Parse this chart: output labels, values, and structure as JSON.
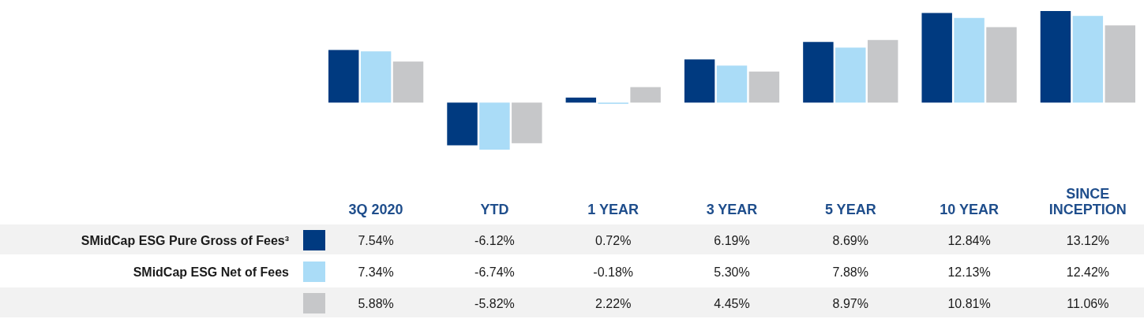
{
  "chart_data": {
    "type": "bar",
    "categories": [
      "3Q 2020",
      "YTD",
      "1 YEAR",
      "3 YEAR",
      "5 YEAR",
      "10 YEAR",
      "SINCE INCEPTION"
    ],
    "legend": "bottom",
    "series": [
      {
        "name": "SMidCap ESG Pure Gross of Fees³",
        "color": "#003a80",
        "values": [
          7.54,
          -6.12,
          0.72,
          6.19,
          8.69,
          12.84,
          13.12
        ],
        "value_labels": [
          "7.54%",
          "-6.12%",
          "0.72%",
          "6.19%",
          "8.69%",
          "12.84%",
          "13.12%"
        ]
      },
      {
        "name": "SMidCap ESG Net of Fees",
        "color": "#aadcf7",
        "values": [
          7.34,
          -6.74,
          -0.18,
          5.3,
          7.88,
          12.13,
          12.42
        ],
        "value_labels": [
          "7.34%",
          "-6.74%",
          "-0.18%",
          "5.30%",
          "7.88%",
          "12.13%",
          "12.42%"
        ]
      },
      {
        "color": "#c6c7c9",
        "values": [
          5.88,
          -5.82,
          2.22,
          4.45,
          8.97,
          10.81,
          11.06
        ],
        "value_labels": [
          "5.88%",
          "-5.82%",
          "2.22%",
          "4.45%",
          "8.97%",
          "10.81%",
          "11.06%"
        ]
      }
    ]
  }
}
